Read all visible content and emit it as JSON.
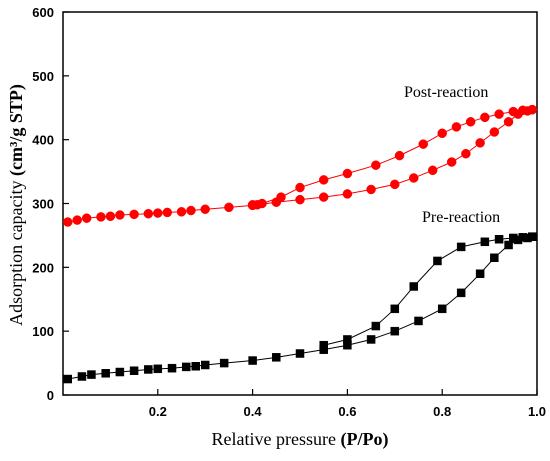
{
  "chart_data": {
    "type": "scatter",
    "xlabel_plain": "Relative pressure ",
    "xlabel_bold": "(P/Po)",
    "ylabel_plain": "Adsorption capacity  ",
    "ylabel_bold": "(cm³/g STP)",
    "xlim": [
      0.0,
      1.0
    ],
    "ylim": [
      0,
      600
    ],
    "xticks": [
      "0.2",
      "0.4",
      "0.6",
      "0.8",
      "1.0"
    ],
    "yticks": [
      "0",
      "100",
      "200",
      "300",
      "400",
      "500",
      "600"
    ],
    "annotations": {
      "post": "Post-reaction",
      "pre": "Pre-reaction"
    },
    "series": [
      {
        "label_key": "post",
        "color": "#ff0000",
        "marker": "circle",
        "adsorption_x": [
          0.01,
          0.03,
          0.05,
          0.08,
          0.1,
          0.12,
          0.15,
          0.18,
          0.2,
          0.22,
          0.25,
          0.27,
          0.3,
          0.35,
          0.4,
          0.41,
          0.45,
          0.5,
          0.55,
          0.6,
          0.65,
          0.7,
          0.74,
          0.78,
          0.82,
          0.85,
          0.88,
          0.91,
          0.94,
          0.96,
          0.98,
          0.99
        ],
        "adsorption_y": [
          271,
          274,
          277,
          279,
          280,
          282,
          283,
          284,
          285,
          286,
          287,
          289,
          291,
          294,
          297,
          298,
          302,
          306,
          310,
          315,
          322,
          330,
          340,
          352,
          365,
          378,
          395,
          412,
          428,
          440,
          445,
          447
        ],
        "desorption_x": [
          0.99,
          0.97,
          0.95,
          0.92,
          0.89,
          0.86,
          0.83,
          0.8,
          0.76,
          0.71,
          0.66,
          0.6,
          0.55,
          0.5,
          0.46,
          0.42,
          0.4
        ],
        "desorption_y": [
          447,
          446,
          444,
          440,
          435,
          428,
          420,
          410,
          393,
          375,
          360,
          347,
          337,
          325,
          310,
          300,
          298
        ]
      },
      {
        "label_key": "pre",
        "color": "#000000",
        "marker": "square",
        "adsorption_x": [
          0.01,
          0.04,
          0.06,
          0.09,
          0.12,
          0.15,
          0.18,
          0.2,
          0.23,
          0.26,
          0.28,
          0.3,
          0.34,
          0.4,
          0.45,
          0.5,
          0.55,
          0.6,
          0.65,
          0.7,
          0.75,
          0.8,
          0.84,
          0.88,
          0.91,
          0.94,
          0.96,
          0.98,
          0.99
        ],
        "adsorption_y": [
          25,
          29,
          32,
          34,
          36,
          38,
          40,
          41,
          42,
          44,
          45,
          47,
          50,
          54,
          59,
          65,
          71,
          78,
          87,
          100,
          116,
          135,
          160,
          190,
          215,
          235,
          243,
          246,
          248
        ],
        "desorption_x": [
          0.99,
          0.97,
          0.95,
          0.92,
          0.89,
          0.84,
          0.79,
          0.74,
          0.7,
          0.66,
          0.6,
          0.55
        ],
        "desorption_y": [
          248,
          247,
          246,
          244,
          240,
          232,
          210,
          170,
          135,
          108,
          87,
          78
        ]
      }
    ]
  }
}
